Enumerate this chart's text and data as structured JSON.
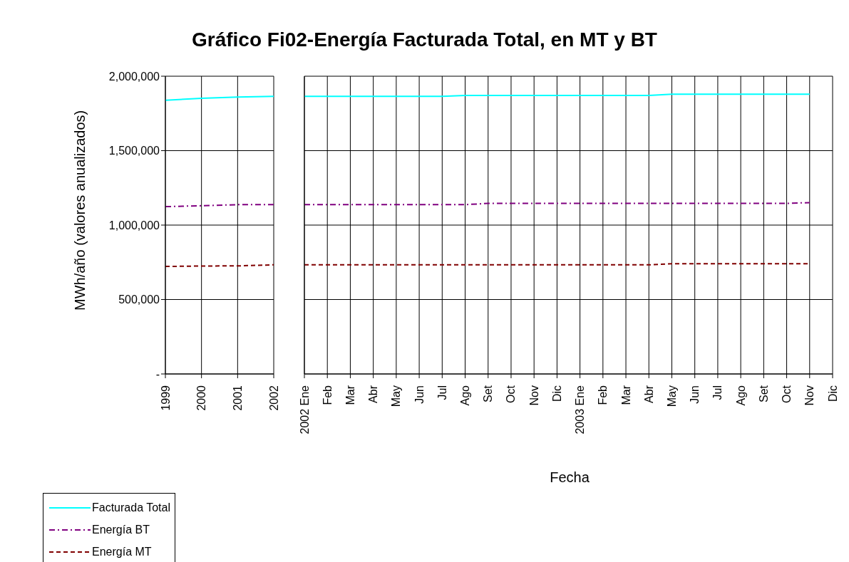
{
  "chart_data": [
    {
      "type": "line",
      "title": "Gráfico Fi02-Energía Facturada Total, en MT y BT",
      "ylabel": "MWh/año (valores anualizados)",
      "categories": [
        "1999",
        "2000",
        "2001",
        "2002"
      ],
      "ylim": [
        0,
        2000000
      ],
      "yticks": [
        {
          "value": 0,
          "label": "-"
        },
        {
          "value": 500000,
          "label": "500,000"
        },
        {
          "value": 1000000,
          "label": "1,000,000"
        },
        {
          "value": 1500000,
          "label": "1,500,000"
        },
        {
          "value": 2000000,
          "label": "2,000,000"
        }
      ],
      "grid": true,
      "legend": "bottom left",
      "marker": "none",
      "series": [
        {
          "name": "Facturada Total",
          "color": "#00ffff",
          "line_style": "solid",
          "values": [
            1838000,
            1852000,
            1860000,
            1865000
          ]
        },
        {
          "name": "Energía BT",
          "color": "#800080",
          "line_style": "dashdot",
          "values": [
            1124000,
            1130000,
            1137000,
            1137000
          ]
        },
        {
          "name": "Energía MT",
          "color": "#800000",
          "line_style": "dashed",
          "values": [
            722000,
            725000,
            726000,
            733000
          ]
        }
      ]
    },
    {
      "type": "line",
      "xlabel": "Fecha",
      "categories": [
        "2002 Ene",
        "Feb",
        "Mar",
        "Abr",
        "May",
        "Jun",
        "Jul",
        "Ago",
        "Set",
        "Oct",
        "Nov",
        "Dic",
        "2003 Ene",
        "Feb",
        "Mar",
        "Abr",
        "May",
        "Jun",
        "Jul",
        "Ago",
        "Set",
        "Oct",
        "Nov",
        "Dic"
      ],
      "ylim": [
        0,
        2000000
      ],
      "yticks": [
        0,
        500000,
        1000000,
        1500000,
        2000000
      ],
      "tick_labels": "x",
      "grid": true,
      "marker": "none",
      "series": [
        {
          "color": "#00ffff",
          "line_style": "solid",
          "values": [
            1865000,
            1865000,
            1865000,
            1865000,
            1865000,
            1865000,
            1865000,
            1871000,
            1871000,
            1871000,
            1871000,
            1871000,
            1871000,
            1871000,
            1871000,
            1871000,
            1879000,
            1879000,
            1879000,
            1879000,
            1879000,
            1879000,
            1879000,
            null
          ]
        },
        {
          "color": "#800080",
          "line_style": "dashdot",
          "values": [
            1137000,
            1137000,
            1137000,
            1137000,
            1137000,
            1137000,
            1137000,
            1137000,
            1146000,
            1146000,
            1146000,
            1146000,
            1146000,
            1146000,
            1146000,
            1146000,
            1146000,
            1146000,
            1146000,
            1146000,
            1146000,
            1146000,
            1151000,
            null
          ]
        },
        {
          "color": "#800000",
          "line_style": "dashed",
          "values": [
            733000,
            733000,
            733000,
            733000,
            733000,
            733000,
            733000,
            733000,
            733000,
            733000,
            733000,
            733000,
            733000,
            733000,
            733000,
            733000,
            740000,
            740000,
            740000,
            740000,
            740000,
            740000,
            740000,
            null
          ]
        }
      ]
    }
  ]
}
